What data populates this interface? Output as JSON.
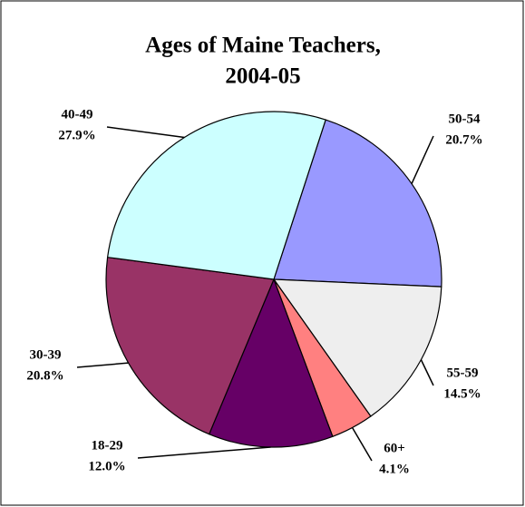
{
  "chart_data": {
    "type": "pie",
    "title": [
      "Ages of Maine Teachers,",
      "2004-05"
    ],
    "categories": [
      "50-54",
      "55-59",
      "60+",
      "18-29",
      "30-39",
      "40-49"
    ],
    "values": [
      20.7,
      14.5,
      4.1,
      12.0,
      20.8,
      27.9
    ],
    "value_labels": [
      "20.7%",
      "14.5%",
      "4.1%",
      "12.0%",
      "20.8%",
      "27.9%"
    ],
    "colors": [
      "#9999ff",
      "#eeeeee",
      "#ff8080",
      "#660066",
      "#993366",
      "#ccffff"
    ]
  }
}
